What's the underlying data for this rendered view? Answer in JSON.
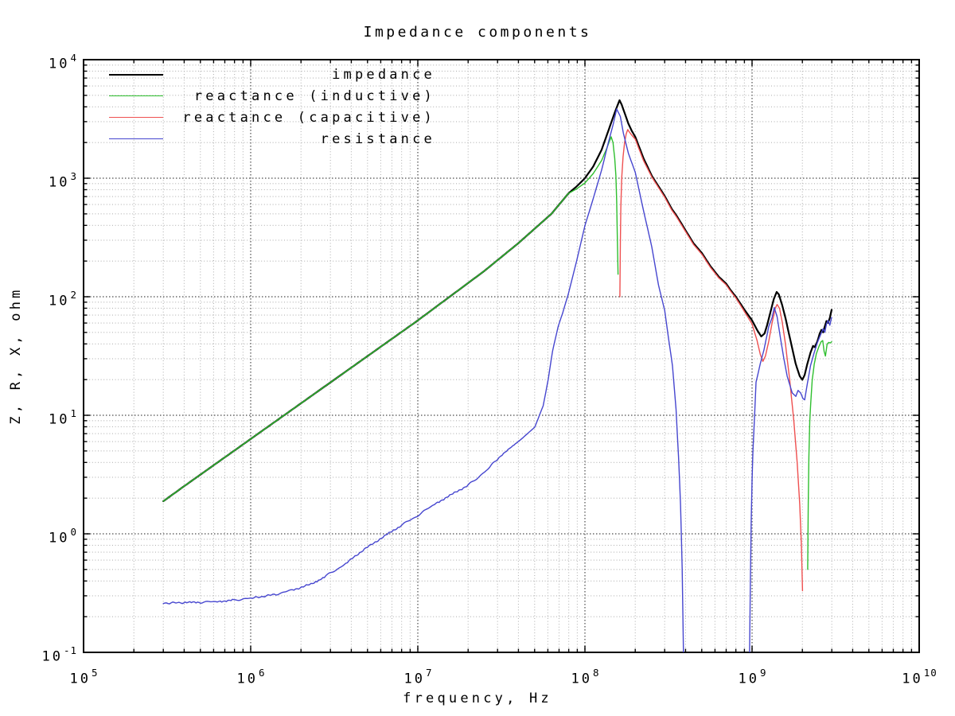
{
  "chart_data": {
    "type": "line",
    "title": "Impedance components",
    "xlabel": "frequency, Hz",
    "ylabel": "Z, R, X, ohm",
    "x_scale": "log",
    "y_scale": "log",
    "xlim_hz": [
      100000,
      10000000000
    ],
    "ylim_ohm": [
      0.1,
      10000
    ],
    "x_tick_exponents": [
      "5",
      "6",
      "7",
      "8",
      "9",
      "10"
    ],
    "y_tick_exponents": [
      "4",
      "3",
      "2",
      "1",
      "0",
      "-1"
    ],
    "grid": {
      "major": true,
      "minor": true,
      "style": "dotted"
    },
    "legend_position": "top-left-inside",
    "point_units": {
      "x": "log10 of frequency in Hz",
      "y": "log10 of magnitude in ohm"
    },
    "series": [
      {
        "name": "impedance",
        "color": "#000000",
        "line_width": 2.2,
        "noisy": false,
        "segments": [
          [
            [
              5.477,
              0.275
            ],
            [
              5.6,
              0.4
            ],
            [
              5.8,
              0.6
            ],
            [
              6.0,
              0.8
            ],
            [
              6.2,
              1.0
            ],
            [
              6.4,
              1.2
            ],
            [
              6.6,
              1.4
            ],
            [
              6.8,
              1.6
            ],
            [
              7.0,
              1.8
            ],
            [
              7.2,
              2.01
            ],
            [
              7.4,
              2.22
            ],
            [
              7.6,
              2.45
            ],
            [
              7.8,
              2.7
            ],
            [
              7.9,
              2.87
            ],
            [
              7.95,
              2.93
            ],
            [
              8.0,
              3.0
            ],
            [
              8.05,
              3.1
            ],
            [
              8.1,
              3.24
            ],
            [
              8.15,
              3.44
            ],
            [
              8.18,
              3.56
            ],
            [
              8.207,
              3.658
            ],
            [
              8.22,
              3.62
            ],
            [
              8.24,
              3.54
            ],
            [
              8.26,
              3.46
            ],
            [
              8.28,
              3.4
            ],
            [
              8.301,
              3.35
            ],
            [
              8.35,
              3.17
            ],
            [
              8.4,
              3.02
            ],
            [
              8.45,
              2.91
            ],
            [
              8.477,
              2.85
            ],
            [
              8.52,
              2.74
            ],
            [
              8.55,
              2.68
            ],
            [
              8.602,
              2.56
            ],
            [
              8.65,
              2.45
            ],
            [
              8.699,
              2.37
            ],
            [
              8.75,
              2.26
            ],
            [
              8.8,
              2.17
            ],
            [
              8.845,
              2.11
            ],
            [
              8.875,
              2.05
            ],
            [
              8.903,
              2.0
            ],
            [
              8.95,
              1.9
            ],
            [
              9.0,
              1.8
            ],
            [
              9.03,
              1.72
            ],
            [
              9.055,
              1.665
            ],
            [
              9.075,
              1.69
            ],
            [
              9.09,
              1.76
            ],
            [
              9.11,
              1.87
            ],
            [
              9.13,
              1.98
            ],
            [
              9.147,
              2.04
            ],
            [
              9.16,
              2.02
            ],
            [
              9.18,
              1.93
            ],
            [
              9.2,
              1.82
            ],
            [
              9.23,
              1.63
            ],
            [
              9.26,
              1.44
            ],
            [
              9.285,
              1.33
            ],
            [
              9.301,
              1.3
            ],
            [
              9.315,
              1.34
            ],
            [
              9.33,
              1.43
            ],
            [
              9.35,
              1.53
            ],
            [
              9.365,
              1.585
            ],
            [
              9.375,
              1.575
            ],
            [
              9.39,
              1.62
            ],
            [
              9.405,
              1.69
            ],
            [
              9.415,
              1.72
            ],
            [
              9.425,
              1.7
            ],
            [
              9.435,
              1.75
            ],
            [
              9.445,
              1.795
            ],
            [
              9.455,
              1.78
            ],
            [
              9.465,
              1.82
            ],
            [
              9.476,
              1.89
            ]
          ]
        ]
      },
      {
        "name": "reactance (inductive)",
        "color": "#2fbf2f",
        "line_width": 1.4,
        "noisy": false,
        "segments": [
          [
            [
              5.477,
              0.275
            ],
            [
              5.6,
              0.4
            ],
            [
              5.8,
              0.6
            ],
            [
              6.0,
              0.8
            ],
            [
              6.2,
              1.0
            ],
            [
              6.4,
              1.2
            ],
            [
              6.6,
              1.4
            ],
            [
              6.8,
              1.6
            ],
            [
              7.0,
              1.8
            ],
            [
              7.2,
              2.01
            ],
            [
              7.4,
              2.22
            ],
            [
              7.6,
              2.45
            ],
            [
              7.8,
              2.7
            ],
            [
              7.9,
              2.87
            ],
            [
              7.95,
              2.91
            ],
            [
              8.0,
              2.96
            ],
            [
              8.05,
              3.04
            ],
            [
              8.1,
              3.15
            ],
            [
              8.13,
              3.25
            ],
            [
              8.157,
              3.349
            ],
            [
              8.168,
              3.3
            ],
            [
              8.178,
              3.17
            ],
            [
              8.185,
              3.02
            ],
            [
              8.19,
              2.8
            ],
            [
              8.194,
              2.5
            ],
            [
              8.198,
              2.19
            ]
          ],
          [
            [
              9.333,
              -0.3
            ],
            [
              9.336,
              0.25
            ],
            [
              9.34,
              0.65
            ],
            [
              9.345,
              0.95
            ],
            [
              9.351,
              1.1
            ],
            [
              9.36,
              1.3
            ],
            [
              9.372,
              1.43
            ],
            [
              9.385,
              1.52
            ],
            [
              9.4,
              1.58
            ],
            [
              9.413,
              1.62
            ],
            [
              9.423,
              1.63
            ],
            [
              9.431,
              1.54
            ],
            [
              9.439,
              1.5
            ],
            [
              9.449,
              1.6
            ],
            [
              9.459,
              1.615
            ],
            [
              9.468,
              1.61
            ],
            [
              9.476,
              1.62
            ]
          ]
        ]
      },
      {
        "name": "reactance (capacitive)",
        "color": "#ef5050",
        "line_width": 1.4,
        "noisy": false,
        "segments": [
          [
            [
              8.209,
              2.0
            ],
            [
              8.212,
              2.45
            ],
            [
              8.215,
              2.75
            ],
            [
              8.22,
              3.0
            ],
            [
              8.228,
              3.18
            ],
            [
              8.237,
              3.3
            ],
            [
              8.247,
              3.375
            ],
            [
              8.256,
              3.41
            ],
            [
              8.268,
              3.385
            ],
            [
              8.285,
              3.355
            ],
            [
              8.301,
              3.33
            ],
            [
              8.35,
              3.15
            ],
            [
              8.4,
              3.01
            ],
            [
              8.45,
              2.9
            ],
            [
              8.477,
              2.84
            ],
            [
              8.52,
              2.73
            ],
            [
              8.55,
              2.67
            ],
            [
              8.602,
              2.55
            ],
            [
              8.65,
              2.44
            ],
            [
              8.699,
              2.36
            ],
            [
              8.75,
              2.25
            ],
            [
              8.8,
              2.16
            ],
            [
              8.845,
              2.1
            ],
            [
              8.875,
              2.04
            ],
            [
              8.903,
              1.99
            ],
            [
              8.95,
              1.885
            ],
            [
              9.0,
              1.77
            ],
            [
              9.03,
              1.63
            ],
            [
              9.05,
              1.51
            ],
            [
              9.065,
              1.455
            ],
            [
              9.08,
              1.5
            ],
            [
              9.1,
              1.625
            ],
            [
              9.12,
              1.78
            ],
            [
              9.138,
              1.9
            ],
            [
              9.15,
              1.935
            ],
            [
              9.165,
              1.9
            ],
            [
              9.18,
              1.79
            ],
            [
              9.2,
              1.6
            ],
            [
              9.225,
              1.3
            ],
            [
              9.25,
              0.95
            ],
            [
              9.27,
              0.6
            ],
            [
              9.285,
              0.25
            ],
            [
              9.295,
              -0.1
            ],
            [
              9.302,
              -0.48
            ]
          ]
        ]
      },
      {
        "name": "resistance",
        "color": "#4646cf",
        "line_width": 1.4,
        "noisy": true,
        "segments": [
          [
            [
              5.477,
              -0.585
            ],
            [
              5.6,
              -0.58
            ],
            [
              5.7,
              -0.578
            ],
            [
              5.8,
              -0.572
            ],
            [
              5.9,
              -0.558
            ],
            [
              6.0,
              -0.545
            ],
            [
              6.15,
              -0.51
            ],
            [
              6.25,
              -0.475
            ],
            [
              6.37,
              -0.42
            ],
            [
              6.45,
              -0.355
            ],
            [
              6.56,
              -0.26
            ],
            [
              6.68,
              -0.13
            ],
            [
              6.8,
              -0.02
            ],
            [
              6.9,
              0.07
            ],
            [
              7.0,
              0.155
            ],
            [
              7.1,
              0.25
            ],
            [
              7.2,
              0.33
            ],
            [
              7.301,
              0.41
            ],
            [
              7.4,
              0.52
            ],
            [
              7.477,
              0.633
            ],
            [
              7.55,
              0.72
            ],
            [
              7.62,
              0.8
            ],
            [
              7.7,
              0.9
            ],
            [
              7.75,
              1.08
            ],
            [
              7.78,
              1.3
            ],
            [
              7.806,
              1.54
            ],
            [
              7.84,
              1.75
            ],
            [
              7.866,
              1.86
            ],
            [
              7.9,
              2.02
            ],
            [
              7.95,
              2.3
            ],
            [
              8.0,
              2.6
            ],
            [
              8.05,
              2.83
            ],
            [
              8.1,
              3.07
            ],
            [
              8.14,
              3.3
            ],
            [
              8.17,
              3.46
            ],
            [
              8.19,
              3.584
            ],
            [
              8.212,
              3.52
            ],
            [
              8.23,
              3.38
            ],
            [
              8.26,
              3.21
            ],
            [
              8.301,
              3.05
            ],
            [
              8.35,
              2.73
            ],
            [
              8.4,
              2.42
            ],
            [
              8.44,
              2.1
            ],
            [
              8.477,
              1.886
            ],
            [
              8.5,
              1.65
            ],
            [
              8.524,
              1.416
            ],
            [
              8.545,
              1.05
            ],
            [
              8.56,
              0.65
            ],
            [
              8.572,
              0.25
            ],
            [
              8.582,
              -0.3
            ],
            [
              8.59,
              -1.05
            ]
          ],
          [
            [
              8.985,
              -1.05
            ],
            [
              8.99,
              -0.4
            ],
            [
              8.995,
              0.1
            ],
            [
              9.0,
              0.45
            ],
            [
              9.005,
              0.7
            ],
            [
              9.015,
              1.0
            ],
            [
              9.024,
              1.28
            ],
            [
              9.05,
              1.44
            ],
            [
              9.071,
              1.55
            ],
            [
              9.1,
              1.75
            ],
            [
              9.119,
              1.82
            ],
            [
              9.133,
              1.91
            ],
            [
              9.15,
              1.83
            ],
            [
              9.17,
              1.65
            ],
            [
              9.19,
              1.48
            ],
            [
              9.21,
              1.33
            ],
            [
              9.24,
              1.19
            ],
            [
              9.262,
              1.16
            ],
            [
              9.275,
              1.21
            ],
            [
              9.29,
              1.19
            ],
            [
              9.305,
              1.14
            ],
            [
              9.315,
              1.13
            ],
            [
              9.33,
              1.26
            ],
            [
              9.35,
              1.42
            ],
            [
              9.37,
              1.52
            ],
            [
              9.39,
              1.61
            ],
            [
              9.41,
              1.68
            ],
            [
              9.425,
              1.73
            ],
            [
              9.435,
              1.7
            ],
            [
              9.445,
              1.77
            ],
            [
              9.455,
              1.8
            ],
            [
              9.465,
              1.76
            ],
            [
              9.476,
              1.825
            ]
          ]
        ]
      }
    ]
  }
}
